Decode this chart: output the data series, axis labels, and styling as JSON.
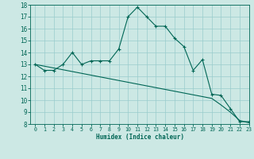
{
  "xlabel": "Humidex (Indice chaleur)",
  "bg_color": "#cce8e4",
  "grid_color": "#99cccc",
  "line_color": "#006655",
  "x_humidex": [
    0,
    1,
    2,
    3,
    4,
    5,
    6,
    7,
    8,
    9,
    10,
    11,
    12,
    13,
    14,
    15,
    16,
    17,
    18,
    19,
    20,
    21,
    22,
    23
  ],
  "y_curve": [
    13,
    12.5,
    12.5,
    13,
    14,
    13,
    13.3,
    13.3,
    13.3,
    14.3,
    17.0,
    17.8,
    17.0,
    16.2,
    16.2,
    15.2,
    14.5,
    12.5,
    13.4,
    10.5,
    10.4,
    9.3,
    8.2,
    8.2
  ],
  "y_line": [
    13,
    12.85,
    12.7,
    12.55,
    12.4,
    12.25,
    12.1,
    11.95,
    11.8,
    11.65,
    11.5,
    11.35,
    11.2,
    11.05,
    10.9,
    10.75,
    10.6,
    10.45,
    10.3,
    10.15,
    9.6,
    9.0,
    8.3,
    8.1
  ],
  "ylim": [
    8,
    18
  ],
  "xlim": [
    -0.5,
    23
  ],
  "yticks": [
    8,
    9,
    10,
    11,
    12,
    13,
    14,
    15,
    16,
    17,
    18
  ],
  "xticks": [
    0,
    1,
    2,
    3,
    4,
    5,
    6,
    7,
    8,
    9,
    10,
    11,
    12,
    13,
    14,
    15,
    16,
    17,
    18,
    19,
    20,
    21,
    22,
    23
  ]
}
